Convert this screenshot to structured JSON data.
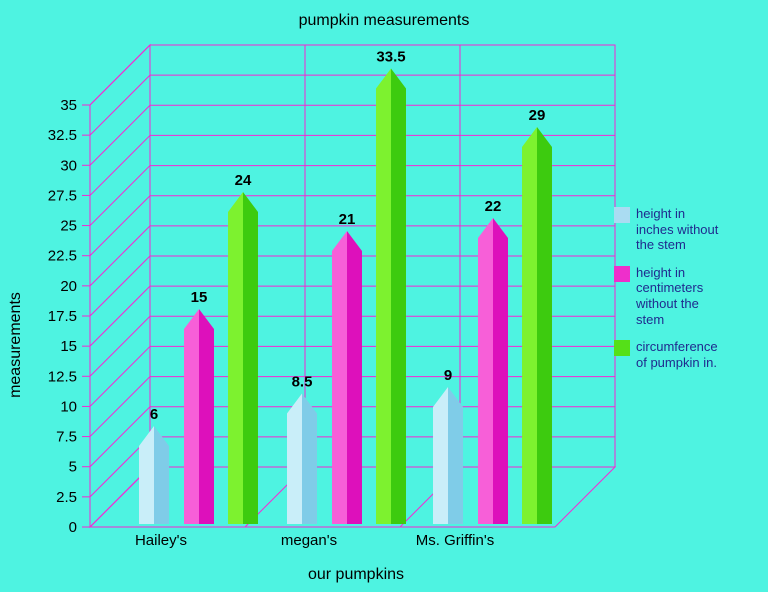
{
  "title": "pumpkin measurements",
  "colors": {
    "background": "#4ef3e1",
    "grid": "#f726d4",
    "text": "#000000",
    "legend_text": "#1f2b8e"
  },
  "legend": {
    "items": [
      {
        "label": "height in\ninches without\nthe stem"
      },
      {
        "label": "height in\ncentimeters\nwithout the\nstem"
      },
      {
        "label": "circumference\nof pumpkin in."
      }
    ]
  },
  "chart_data": {
    "type": "bar",
    "style": "3d clustered column with pointed caps",
    "title": "pumpkin measurements",
    "xlabel": "our pumpkins",
    "ylabel": "measurements",
    "categories": [
      "Hailey's",
      "megan's",
      "Ms. Griffin's"
    ],
    "series": [
      {
        "name": "height in inches without the stem",
        "values": [
          6,
          8.5,
          9
        ],
        "color_light": "#c9eef9",
        "color_dark": "#7fcce8",
        "legend_color": "#aadcf2"
      },
      {
        "name": "height in centimeters without the stem",
        "values": [
          15,
          21,
          22
        ],
        "color_light": "#f75fd8",
        "color_dark": "#dd10bb",
        "legend_color": "#ee2fcb"
      },
      {
        "name": "circumference of pumpkin in.",
        "values": [
          24,
          33.5,
          29
        ],
        "color_light": "#7df22f",
        "color_dark": "#3dcb0f",
        "legend_color": "#55e018"
      }
    ],
    "y_ticks": [
      0,
      2.5,
      5,
      7.5,
      10,
      12.5,
      15,
      17.5,
      20,
      22.5,
      25,
      27.5,
      30,
      32.5,
      35
    ],
    "ylim": [
      0,
      35
    ],
    "grid": true,
    "legend_position": "right"
  }
}
